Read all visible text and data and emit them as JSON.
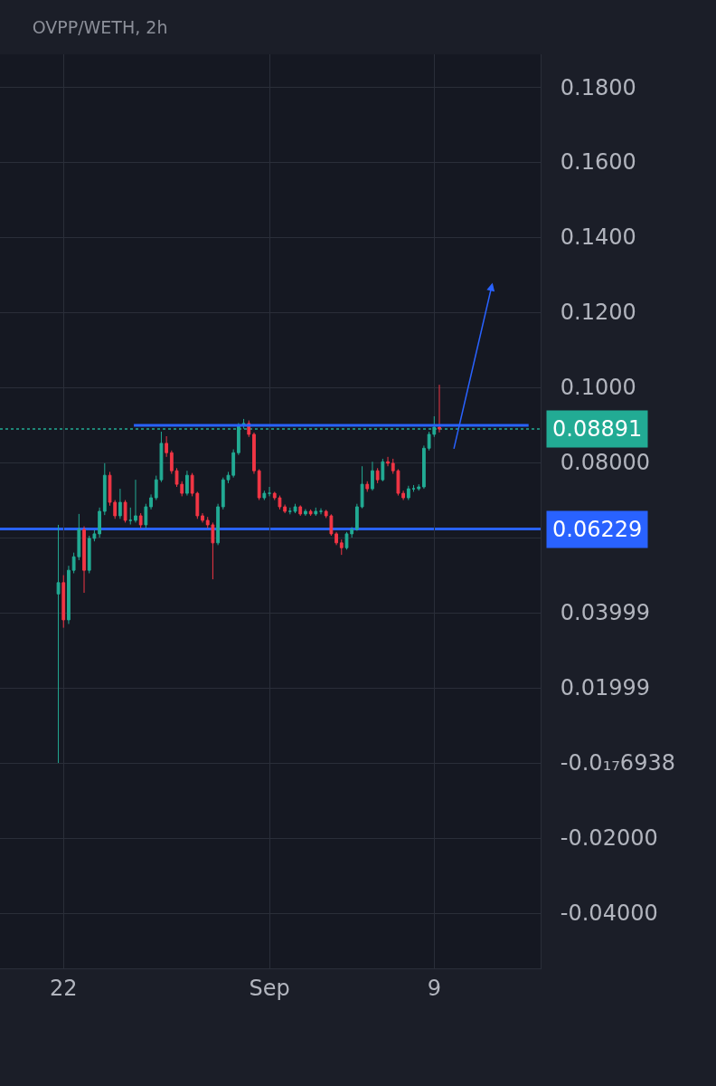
{
  "chart_data": {
    "type": "candlestick",
    "title": "OVPP/WETH, 2h",
    "colors": [
      "#22ab94",
      "#f23645",
      "#22ab94",
      "#22ab94",
      "#22ab94",
      "#f23645",
      "#22ab94",
      "#22ab94",
      "#22ab94",
      "#22ab94",
      "#f23645",
      "#f23645",
      "#22ab94",
      "#f23645",
      "#22ab94",
      "#22ab94",
      "#f23645",
      "#22ab94",
      "#22ab94",
      "#22ab94",
      "#22ab94",
      "#f23645",
      "#f23645",
      "#f23645",
      "#f23645",
      "#22ab94",
      "#f23645",
      "#f23645",
      "#f23645",
      "#f23645",
      "#f23645",
      "#22ab94",
      "#22ab94",
      "#22ab94",
      "#22ab94",
      "#22ab94",
      "#22ab94",
      "#f23645",
      "#f23645",
      "#f23645",
      "#22ab94",
      "#22ab94",
      "#f23645",
      "#f23645",
      "#f23645",
      "#22ab94",
      "#22ab94",
      "#f23645",
      "#22ab94",
      "#f23645",
      "#22ab94",
      "#22ab94",
      "#f23645",
      "#f23645",
      "#f23645",
      "#f23645",
      "#22ab94",
      "#22ab94",
      "#22ab94",
      "#22ab94",
      "#f23645",
      "#22ab94",
      "#f23645",
      "#22ab94",
      "#f23645",
      "#f23645",
      "#f23645",
      "#f23645",
      "#22ab94",
      "#22ab94",
      "#22ab94",
      "#22ab94",
      "#22ab94",
      "#22ab94",
      "#f23645"
    ],
    "x": [
      "--08-21T18:00",
      "--08-22T00:00",
      "--08-22T06:00",
      "--08-22T12:00",
      "--08-22T18:00",
      "--08-23T00:00",
      "--08-23T06:00",
      "--08-23T12:00",
      "--08-23T18:00",
      "--08-24T00:00",
      "--08-24T06:00",
      "--08-24T12:00",
      "--08-24T18:00",
      "--08-25T00:00",
      "--08-25T06:00",
      "--08-25T12:00",
      "--08-25T18:00",
      "--08-26T00:00",
      "--08-26T06:00",
      "--08-26T12:00",
      "--08-26T18:00",
      "--08-27T00:00",
      "--08-27T06:00",
      "--08-27T12:00",
      "--08-27T18:00",
      "--08-28T00:00",
      "--08-28T06:00",
      "--08-28T12:00",
      "--08-28T18:00",
      "--08-29T00:00",
      "--08-29T06:00",
      "--08-29T12:00",
      "--08-29T18:00",
      "--08-30T00:00",
      "--08-30T06:00",
      "--08-30T12:00",
      "--08-30T18:00",
      "--08-31T00:00",
      "--08-31T06:00",
      "--08-31T12:00",
      "--08-31T18:00",
      "--09-01T00:00",
      "--09-01T06:00",
      "--09-01T12:00",
      "--09-01T18:00",
      "--09-02T00:00",
      "--09-02T06:00",
      "--09-02T12:00",
      "--09-02T18:00",
      "--09-03T00:00",
      "--09-03T06:00",
      "--09-03T12:00",
      "--09-03T18:00",
      "--09-04T00:00",
      "--09-04T06:00",
      "--09-04T12:00",
      "--09-04T18:00",
      "--09-05T00:00",
      "--09-05T06:00",
      "--09-05T12:00",
      "--09-05T18:00",
      "--09-06T00:00",
      "--09-06T06:00",
      "--09-06T12:00",
      "--09-06T18:00",
      "--09-07T00:00",
      "--09-07T06:00",
      "--09-07T12:00",
      "--09-07T18:00",
      "--09-08T00:00",
      "--09-08T06:00",
      "--09-08T12:00",
      "--09-08T18:00",
      "--09-09T00:00",
      "--09-09T06:00"
    ],
    "ohlc": [
      [
        0.045,
        0.0634,
        0.0,
        0.048
      ],
      [
        0.048,
        0.05,
        0.036,
        0.0381
      ],
      [
        0.0381,
        0.0525,
        0.037,
        0.0513
      ],
      [
        0.0513,
        0.056,
        0.0505,
        0.0549
      ],
      [
        0.0549,
        0.0663,
        0.054,
        0.0622
      ],
      [
        0.0622,
        0.063,
        0.0453,
        0.0513
      ],
      [
        0.0513,
        0.0605,
        0.0505,
        0.0598
      ],
      [
        0.0598,
        0.062,
        0.059,
        0.061
      ],
      [
        0.061,
        0.068,
        0.06,
        0.067
      ],
      [
        0.067,
        0.0798,
        0.066,
        0.0766
      ],
      [
        0.0766,
        0.0775,
        0.0685,
        0.0694
      ],
      [
        0.0694,
        0.07,
        0.065,
        0.0658
      ],
      [
        0.0658,
        0.073,
        0.065,
        0.0694
      ],
      [
        0.0694,
        0.07,
        0.064,
        0.0646
      ],
      [
        0.0646,
        0.068,
        0.0635,
        0.0646
      ],
      [
        0.0646,
        0.0754,
        0.064,
        0.0658
      ],
      [
        0.0658,
        0.0665,
        0.0625,
        0.0634
      ],
      [
        0.0634,
        0.069,
        0.0625,
        0.0682
      ],
      [
        0.0682,
        0.0715,
        0.0675,
        0.0706
      ],
      [
        0.0706,
        0.0765,
        0.07,
        0.0754
      ],
      [
        0.0754,
        0.0882,
        0.0748,
        0.0851
      ],
      [
        0.0851,
        0.087,
        0.0815,
        0.0826
      ],
      [
        0.0826,
        0.0832,
        0.077,
        0.0778
      ],
      [
        0.0778,
        0.0785,
        0.0735,
        0.0742
      ],
      [
        0.0742,
        0.075,
        0.071,
        0.0718
      ],
      [
        0.0718,
        0.0778,
        0.0712,
        0.0766
      ],
      [
        0.0766,
        0.0772,
        0.071,
        0.0718
      ],
      [
        0.0718,
        0.0722,
        0.065,
        0.0658
      ],
      [
        0.0658,
        0.0665,
        0.064,
        0.0646
      ],
      [
        0.0646,
        0.0655,
        0.0625,
        0.0634
      ],
      [
        0.0634,
        0.064,
        0.0489,
        0.0586
      ],
      [
        0.0586,
        0.069,
        0.058,
        0.0682
      ],
      [
        0.0682,
        0.076,
        0.0675,
        0.0754
      ],
      [
        0.0754,
        0.0775,
        0.0745,
        0.0766
      ],
      [
        0.0766,
        0.0835,
        0.076,
        0.0826
      ],
      [
        0.0826,
        0.0905,
        0.082,
        0.0899
      ],
      [
        0.0899,
        0.0916,
        0.089,
        0.0904
      ],
      [
        0.0904,
        0.0912,
        0.0868,
        0.0875
      ],
      [
        0.0875,
        0.088,
        0.077,
        0.0778
      ],
      [
        0.0778,
        0.0782,
        0.07,
        0.0706
      ],
      [
        0.0706,
        0.0725,
        0.07,
        0.0718
      ],
      [
        0.0718,
        0.0735,
        0.071,
        0.0718
      ],
      [
        0.0718,
        0.0722,
        0.07,
        0.0706
      ],
      [
        0.0706,
        0.0712,
        0.0675,
        0.0682
      ],
      [
        0.0682,
        0.0688,
        0.0665,
        0.067
      ],
      [
        0.067,
        0.068,
        0.0662,
        0.067
      ],
      [
        0.067,
        0.069,
        0.0665,
        0.0682
      ],
      [
        0.0682,
        0.0686,
        0.0658,
        0.0663
      ],
      [
        0.0663,
        0.0676,
        0.0658,
        0.067
      ],
      [
        0.067,
        0.0675,
        0.0658,
        0.0663
      ],
      [
        0.0663,
        0.068,
        0.0658,
        0.067
      ],
      [
        0.067,
        0.0678,
        0.0662,
        0.067
      ],
      [
        0.067,
        0.0674,
        0.0652,
        0.0658
      ],
      [
        0.0658,
        0.0662,
        0.0605,
        0.061
      ],
      [
        0.061,
        0.0615,
        0.058,
        0.0586
      ],
      [
        0.0586,
        0.0595,
        0.0554,
        0.0573
      ],
      [
        0.0573,
        0.0615,
        0.0568,
        0.061
      ],
      [
        0.061,
        0.0628,
        0.06,
        0.0622
      ],
      [
        0.0622,
        0.069,
        0.0618,
        0.0682
      ],
      [
        0.0682,
        0.079,
        0.0678,
        0.0742
      ],
      [
        0.0742,
        0.075,
        0.0722,
        0.073
      ],
      [
        0.073,
        0.0802,
        0.0725,
        0.0778
      ],
      [
        0.0778,
        0.0785,
        0.0745,
        0.0754
      ],
      [
        0.0754,
        0.081,
        0.075,
        0.0802
      ],
      [
        0.0802,
        0.0815,
        0.079,
        0.0798
      ],
      [
        0.0798,
        0.081,
        0.077,
        0.0778
      ],
      [
        0.0778,
        0.0782,
        0.0712,
        0.0718
      ],
      [
        0.0718,
        0.0725,
        0.07,
        0.0706
      ],
      [
        0.0706,
        0.0738,
        0.07,
        0.073
      ],
      [
        0.073,
        0.074,
        0.0722,
        0.073
      ],
      [
        0.073,
        0.0742,
        0.0725,
        0.0735
      ],
      [
        0.0735,
        0.0845,
        0.073,
        0.0838
      ],
      [
        0.0838,
        0.0882,
        0.0832,
        0.0875
      ],
      [
        0.0875,
        0.0923,
        0.0868,
        0.0894
      ],
      [
        0.0894,
        0.1007,
        0.088,
        0.0889
      ]
    ],
    "series": [
      {
        "type": "line",
        "color": "#2962ff",
        "x": [
          "--08-25T10:00",
          "--09-13T14:00"
        ],
        "values": [
          0.0899,
          0.0899
        ]
      }
    ],
    "ref_lines": [
      {
        "axis": "y",
        "value": 0.08891,
        "label": "0.08891",
        "color": "#22ab94",
        "line_style": "dotted"
      },
      {
        "axis": "y",
        "value": 0.06229,
        "label": "0.06229",
        "color": "#2962ff",
        "line_style": "solid"
      }
    ],
    "xlim": [
      "--08-18T22:00",
      "--09-14T04:00"
    ],
    "xticks": [
      {
        "value": "--08-22",
        "label": "22"
      },
      {
        "value": "--09-01",
        "label": "Sep"
      },
      {
        "value": "--09-09",
        "label": "9"
      }
    ],
    "ylim": [
      -0.0547,
      0.1887
    ],
    "yticks": [
      {
        "value": 0.18,
        "label": "0.1800"
      },
      {
        "value": 0.16,
        "label": "0.1600"
      },
      {
        "value": 0.14,
        "label": "0.1400"
      },
      {
        "value": 0.12,
        "label": "0.1200"
      },
      {
        "value": 0.1,
        "label": "0.1000"
      },
      {
        "value": 0.08,
        "label": "0.08000"
      },
      {
        "value": 0.06,
        "label": null
      },
      {
        "value": 0.03999,
        "label": "0.03999"
      },
      {
        "value": 0.01999,
        "label": "0.01999"
      },
      {
        "value": 0.0,
        "label": "-0.0₁₇6938"
      },
      {
        "value": -0.02,
        "label": "-0.02000"
      },
      {
        "value": -0.04,
        "label": "-0.04000"
      }
    ],
    "grid": true
  }
}
